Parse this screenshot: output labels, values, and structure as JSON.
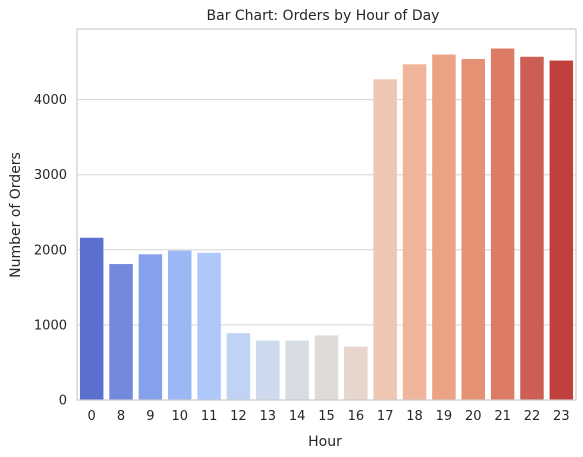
{
  "chart_data": {
    "type": "bar",
    "title": "Bar Chart: Orders by Hour of Day",
    "xlabel": "Hour",
    "ylabel": "Number of Orders",
    "categories": [
      "0",
      "8",
      "9",
      "10",
      "11",
      "12",
      "13",
      "14",
      "15",
      "16",
      "17",
      "18",
      "19",
      "20",
      "21",
      "22",
      "23"
    ],
    "values": [
      2160,
      1810,
      1940,
      1990,
      1960,
      890,
      790,
      790,
      860,
      710,
      4270,
      4470,
      4600,
      4540,
      4680,
      4570,
      4520
    ],
    "ylim": [
      0,
      4940
    ],
    "yticks": [
      0,
      1000,
      2000,
      3000,
      4000
    ],
    "ytick_labels": [
      "0",
      "1000",
      "2000",
      "3000",
      "4000"
    ],
    "grid": "horizontal",
    "palette": "coolwarm",
    "colors": [
      "#5b6fcf",
      "#7289dc",
      "#86a1eb",
      "#9bb7f6",
      "#aec8fb",
      "#c0d3f5",
      "#cdd9ec",
      "#d7dce4",
      "#dfdad8",
      "#e6d6cc",
      "#efc6b1",
      "#efb499",
      "#eba285",
      "#e59174",
      "#dc7c66",
      "#cd5e55",
      "#c0403e"
    ],
    "background": "#ffffff",
    "grid_color": "#d6d6d6",
    "spine_color": "#cccccc"
  }
}
